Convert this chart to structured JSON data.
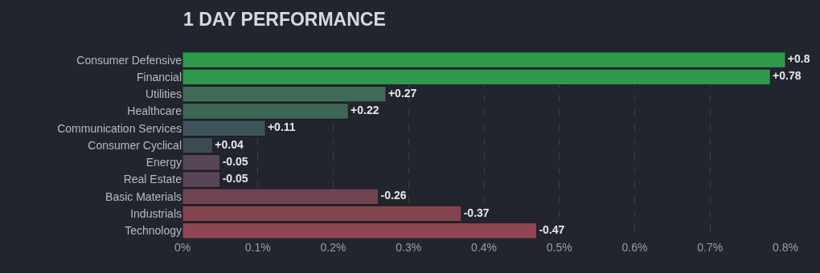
{
  "chart_data": {
    "type": "bar",
    "orientation": "horizontal",
    "title": "1 DAY PERFORMANCE",
    "categories": [
      "Consumer Defensive",
      "Financial",
      "Utilities",
      "Healthcare",
      "Communication Services",
      "Consumer Cyclical",
      "Energy",
      "Real Estate",
      "Basic Materials",
      "Industrials",
      "Technology"
    ],
    "values": [
      0.8,
      0.78,
      0.27,
      0.22,
      0.11,
      0.04,
      -0.05,
      -0.05,
      -0.26,
      -0.37,
      -0.47
    ],
    "base": [
      0,
      0,
      0,
      0,
      0,
      0,
      0.05,
      0.05,
      0.26,
      0.37,
      0.47
    ],
    "value_labels": [
      "+0.8",
      "+0.78",
      "+0.27",
      "+0.22",
      "+0.11",
      "+0.04",
      "-0.05",
      "-0.05",
      "-0.26",
      "-0.37",
      "-0.47"
    ],
    "colors": [
      "#2f9a4c",
      "#2f9a4c",
      "#3f6b56",
      "#3d6754",
      "#3f535b",
      "#3c4b53",
      "#584657",
      "#584657",
      "#6f4553",
      "#84444f",
      "#8f4552"
    ],
    "xlim": [
      0,
      0.8
    ],
    "xticks": [
      {
        "value": 0,
        "label": "0%"
      },
      {
        "value": 0.1,
        "label": "0.1%"
      },
      {
        "value": 0.2,
        "label": "0.2%"
      },
      {
        "value": 0.3,
        "label": "0.3%"
      },
      {
        "value": 0.4,
        "label": "0.4%"
      },
      {
        "value": 0.5,
        "label": "0.5%"
      },
      {
        "value": 0.6,
        "label": "0.6%"
      },
      {
        "value": 0.7,
        "label": "0.7%"
      },
      {
        "value": 0.8,
        "label": "0.8%"
      }
    ],
    "grid": "x"
  }
}
